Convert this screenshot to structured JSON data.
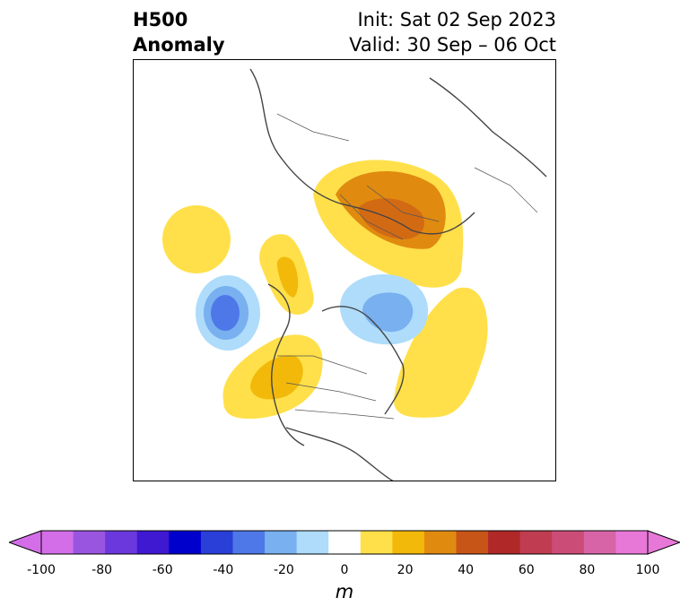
{
  "title": {
    "left_line1": "H500",
    "left_line2": "Anomaly",
    "right_line1": "Init: Sat 02 Sep 2023",
    "right_line2": "Valid: 30 Sep – 06 Oct"
  },
  "colorbar": {
    "unit": "m",
    "ticks": [
      "-100",
      "-80",
      "-60",
      "-40",
      "-20",
      "0",
      "20",
      "40",
      "60",
      "80",
      "100"
    ],
    "colors": [
      "#d46ee8",
      "#9a55e0",
      "#6a38dd",
      "#3f18d2",
      "#0000cc",
      "#2a3ed8",
      "#4e78e8",
      "#78b0f0",
      "#aedcfa",
      "#ffffff",
      "#ffe04a",
      "#f2b90a",
      "#e08a10",
      "#c85518",
      "#b02828",
      "#c03c50",
      "#cc4c78",
      "#d864a8",
      "#e878d8"
    ],
    "extend_low_color": "#d46ee8",
    "extend_high_color": "#e878d8"
  },
  "map": {
    "layers": [
      "coastlines",
      "country-borders",
      "state-borders",
      "anomaly-contours"
    ]
  }
}
